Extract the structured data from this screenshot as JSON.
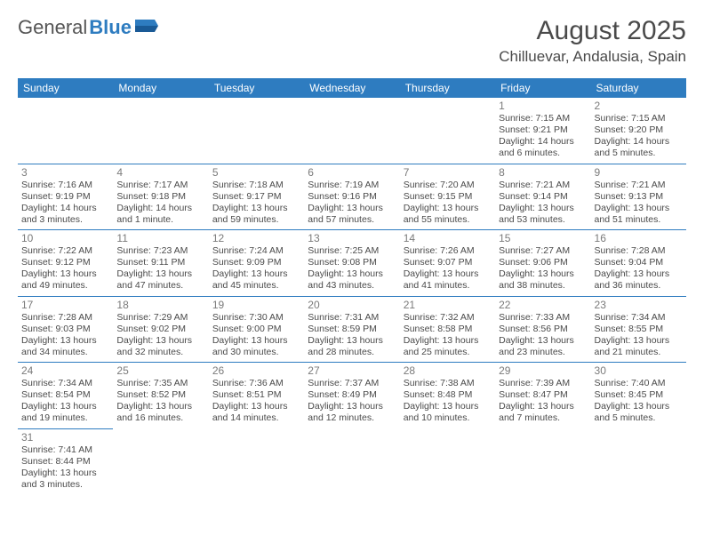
{
  "logo": {
    "text1": "General",
    "text2": "Blue"
  },
  "title": "August 2025",
  "location": "Chilluevar, Andalusia, Spain",
  "day_headers": [
    "Sunday",
    "Monday",
    "Tuesday",
    "Wednesday",
    "Thursday",
    "Friday",
    "Saturday"
  ],
  "colors": {
    "header_bg": "#2e7cc0",
    "header_text": "#ffffff",
    "border": "#2e7cc0",
    "text": "#4a4a4a"
  },
  "weeks": [
    [
      null,
      null,
      null,
      null,
      null,
      {
        "n": "1",
        "sr": "Sunrise: 7:15 AM",
        "ss": "Sunset: 9:21 PM",
        "d1": "Daylight: 14 hours",
        "d2": "and 6 minutes."
      },
      {
        "n": "2",
        "sr": "Sunrise: 7:15 AM",
        "ss": "Sunset: 9:20 PM",
        "d1": "Daylight: 14 hours",
        "d2": "and 5 minutes."
      }
    ],
    [
      {
        "n": "3",
        "sr": "Sunrise: 7:16 AM",
        "ss": "Sunset: 9:19 PM",
        "d1": "Daylight: 14 hours",
        "d2": "and 3 minutes."
      },
      {
        "n": "4",
        "sr": "Sunrise: 7:17 AM",
        "ss": "Sunset: 9:18 PM",
        "d1": "Daylight: 14 hours",
        "d2": "and 1 minute."
      },
      {
        "n": "5",
        "sr": "Sunrise: 7:18 AM",
        "ss": "Sunset: 9:17 PM",
        "d1": "Daylight: 13 hours",
        "d2": "and 59 minutes."
      },
      {
        "n": "6",
        "sr": "Sunrise: 7:19 AM",
        "ss": "Sunset: 9:16 PM",
        "d1": "Daylight: 13 hours",
        "d2": "and 57 minutes."
      },
      {
        "n": "7",
        "sr": "Sunrise: 7:20 AM",
        "ss": "Sunset: 9:15 PM",
        "d1": "Daylight: 13 hours",
        "d2": "and 55 minutes."
      },
      {
        "n": "8",
        "sr": "Sunrise: 7:21 AM",
        "ss": "Sunset: 9:14 PM",
        "d1": "Daylight: 13 hours",
        "d2": "and 53 minutes."
      },
      {
        "n": "9",
        "sr": "Sunrise: 7:21 AM",
        "ss": "Sunset: 9:13 PM",
        "d1": "Daylight: 13 hours",
        "d2": "and 51 minutes."
      }
    ],
    [
      {
        "n": "10",
        "sr": "Sunrise: 7:22 AM",
        "ss": "Sunset: 9:12 PM",
        "d1": "Daylight: 13 hours",
        "d2": "and 49 minutes."
      },
      {
        "n": "11",
        "sr": "Sunrise: 7:23 AM",
        "ss": "Sunset: 9:11 PM",
        "d1": "Daylight: 13 hours",
        "d2": "and 47 minutes."
      },
      {
        "n": "12",
        "sr": "Sunrise: 7:24 AM",
        "ss": "Sunset: 9:09 PM",
        "d1": "Daylight: 13 hours",
        "d2": "and 45 minutes."
      },
      {
        "n": "13",
        "sr": "Sunrise: 7:25 AM",
        "ss": "Sunset: 9:08 PM",
        "d1": "Daylight: 13 hours",
        "d2": "and 43 minutes."
      },
      {
        "n": "14",
        "sr": "Sunrise: 7:26 AM",
        "ss": "Sunset: 9:07 PM",
        "d1": "Daylight: 13 hours",
        "d2": "and 41 minutes."
      },
      {
        "n": "15",
        "sr": "Sunrise: 7:27 AM",
        "ss": "Sunset: 9:06 PM",
        "d1": "Daylight: 13 hours",
        "d2": "and 38 minutes."
      },
      {
        "n": "16",
        "sr": "Sunrise: 7:28 AM",
        "ss": "Sunset: 9:04 PM",
        "d1": "Daylight: 13 hours",
        "d2": "and 36 minutes."
      }
    ],
    [
      {
        "n": "17",
        "sr": "Sunrise: 7:28 AM",
        "ss": "Sunset: 9:03 PM",
        "d1": "Daylight: 13 hours",
        "d2": "and 34 minutes."
      },
      {
        "n": "18",
        "sr": "Sunrise: 7:29 AM",
        "ss": "Sunset: 9:02 PM",
        "d1": "Daylight: 13 hours",
        "d2": "and 32 minutes."
      },
      {
        "n": "19",
        "sr": "Sunrise: 7:30 AM",
        "ss": "Sunset: 9:00 PM",
        "d1": "Daylight: 13 hours",
        "d2": "and 30 minutes."
      },
      {
        "n": "20",
        "sr": "Sunrise: 7:31 AM",
        "ss": "Sunset: 8:59 PM",
        "d1": "Daylight: 13 hours",
        "d2": "and 28 minutes."
      },
      {
        "n": "21",
        "sr": "Sunrise: 7:32 AM",
        "ss": "Sunset: 8:58 PM",
        "d1": "Daylight: 13 hours",
        "d2": "and 25 minutes."
      },
      {
        "n": "22",
        "sr": "Sunrise: 7:33 AM",
        "ss": "Sunset: 8:56 PM",
        "d1": "Daylight: 13 hours",
        "d2": "and 23 minutes."
      },
      {
        "n": "23",
        "sr": "Sunrise: 7:34 AM",
        "ss": "Sunset: 8:55 PM",
        "d1": "Daylight: 13 hours",
        "d2": "and 21 minutes."
      }
    ],
    [
      {
        "n": "24",
        "sr": "Sunrise: 7:34 AM",
        "ss": "Sunset: 8:54 PM",
        "d1": "Daylight: 13 hours",
        "d2": "and 19 minutes."
      },
      {
        "n": "25",
        "sr": "Sunrise: 7:35 AM",
        "ss": "Sunset: 8:52 PM",
        "d1": "Daylight: 13 hours",
        "d2": "and 16 minutes."
      },
      {
        "n": "26",
        "sr": "Sunrise: 7:36 AM",
        "ss": "Sunset: 8:51 PM",
        "d1": "Daylight: 13 hours",
        "d2": "and 14 minutes."
      },
      {
        "n": "27",
        "sr": "Sunrise: 7:37 AM",
        "ss": "Sunset: 8:49 PM",
        "d1": "Daylight: 13 hours",
        "d2": "and 12 minutes."
      },
      {
        "n": "28",
        "sr": "Sunrise: 7:38 AM",
        "ss": "Sunset: 8:48 PM",
        "d1": "Daylight: 13 hours",
        "d2": "and 10 minutes."
      },
      {
        "n": "29",
        "sr": "Sunrise: 7:39 AM",
        "ss": "Sunset: 8:47 PM",
        "d1": "Daylight: 13 hours",
        "d2": "and 7 minutes."
      },
      {
        "n": "30",
        "sr": "Sunrise: 7:40 AM",
        "ss": "Sunset: 8:45 PM",
        "d1": "Daylight: 13 hours",
        "d2": "and 5 minutes."
      }
    ],
    [
      {
        "n": "31",
        "sr": "Sunrise: 7:41 AM",
        "ss": "Sunset: 8:44 PM",
        "d1": "Daylight: 13 hours",
        "d2": "and 3 minutes."
      },
      null,
      null,
      null,
      null,
      null,
      null
    ]
  ]
}
